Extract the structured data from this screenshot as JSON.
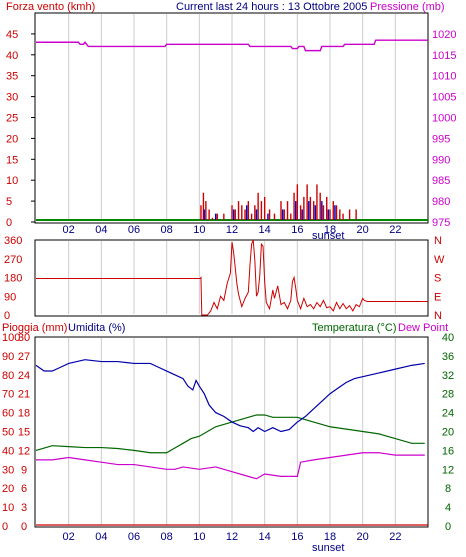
{
  "header": {
    "left_label": "Forza vento (kmh)",
    "center_label": "Current last 24 hours : 13 Ottobre 2005",
    "right_label": "Pressione (mb)"
  },
  "colors": {
    "wind": "#cc0000",
    "pressure": "#cc00cc",
    "direction": "#cc0000",
    "rain": "#cc0000",
    "humidity": "#0000aa",
    "temperature": "#006600",
    "dewpoint": "#cc00cc",
    "gust": "#0000cc",
    "baseline": "#008800",
    "axis_dark": "#000080",
    "grid": "#cccccc"
  },
  "chart_data": [
    {
      "type": "bar",
      "name": "wind-pressure",
      "x_ticks": [
        "02",
        "04",
        "06",
        "08",
        "10",
        "12",
        "14",
        "16",
        "18",
        "20",
        "22"
      ],
      "x_note": "sunset",
      "left_axis": {
        "label": "Forza vento (kmh)",
        "ticks": [
          0,
          5,
          10,
          15,
          20,
          25,
          30,
          35,
          40,
          45
        ],
        "range": [
          0,
          50
        ]
      },
      "right_axis": {
        "label": "Pressione (mb)",
        "ticks": [
          975,
          980,
          985,
          990,
          995,
          1000,
          1005,
          1010,
          1015,
          1020
        ],
        "range": [
          975,
          1025
        ]
      },
      "pressure": [
        [
          0,
          1018
        ],
        [
          2.6,
          1018
        ],
        [
          2.7,
          1017.5
        ],
        [
          2.9,
          1017.5
        ],
        [
          3.0,
          1018
        ],
        [
          3.2,
          1017
        ],
        [
          7.9,
          1017
        ],
        [
          8.0,
          1017.5
        ],
        [
          13.0,
          1017.5
        ],
        [
          13.1,
          1017
        ],
        [
          15.6,
          1017
        ],
        [
          15.7,
          1016.5
        ],
        [
          16.0,
          1016.5
        ],
        [
          16.1,
          1017
        ],
        [
          16.4,
          1017
        ],
        [
          16.5,
          1016
        ],
        [
          17.4,
          1016
        ],
        [
          17.5,
          1017
        ],
        [
          18.8,
          1017
        ],
        [
          18.9,
          1017.5
        ],
        [
          20.7,
          1017.5
        ],
        [
          20.8,
          1018.5
        ],
        [
          24.0,
          1018.5
        ]
      ],
      "wind_speed": [
        [
          10.1,
          4
        ],
        [
          10.25,
          7
        ],
        [
          10.4,
          5
        ],
        [
          10.6,
          3
        ],
        [
          10.8,
          1
        ],
        [
          11.1,
          2
        ],
        [
          11.5,
          2
        ],
        [
          12.0,
          4
        ],
        [
          12.2,
          3
        ],
        [
          12.4,
          5
        ],
        [
          12.6,
          4
        ],
        [
          12.8,
          3
        ],
        [
          13.0,
          5
        ],
        [
          13.2,
          2
        ],
        [
          13.4,
          4
        ],
        [
          13.6,
          7
        ],
        [
          13.8,
          5
        ],
        [
          14.0,
          6
        ],
        [
          14.3,
          3
        ],
        [
          14.6,
          2
        ],
        [
          15.0,
          5
        ],
        [
          15.2,
          3
        ],
        [
          15.4,
          5
        ],
        [
          15.6,
          2
        ],
        [
          15.8,
          7
        ],
        [
          16.0,
          9
        ],
        [
          16.2,
          4
        ],
        [
          16.4,
          6
        ],
        [
          16.6,
          9
        ],
        [
          16.8,
          6
        ],
        [
          17.0,
          5
        ],
        [
          17.2,
          9
        ],
        [
          17.4,
          7
        ],
        [
          17.6,
          4
        ],
        [
          17.8,
          6
        ],
        [
          18.0,
          3
        ],
        [
          18.2,
          5
        ],
        [
          18.4,
          4
        ],
        [
          18.6,
          3
        ],
        [
          18.8,
          2
        ],
        [
          19.2,
          3
        ],
        [
          19.6,
          3
        ]
      ],
      "wind_gust": [
        [
          10.3,
          3
        ],
        [
          11.0,
          2
        ],
        [
          12.1,
          3
        ],
        [
          12.9,
          4
        ],
        [
          13.5,
          3
        ],
        [
          14.2,
          2
        ],
        [
          15.1,
          3
        ],
        [
          15.9,
          5
        ],
        [
          16.3,
          3
        ],
        [
          16.7,
          5
        ],
        [
          17.1,
          4
        ],
        [
          17.5,
          5
        ],
        [
          17.9,
          3
        ],
        [
          18.3,
          4
        ]
      ]
    },
    {
      "type": "line",
      "name": "wind-direction",
      "left_axis": {
        "ticks": [
          0,
          90,
          180,
          270,
          360
        ],
        "range": [
          0,
          360
        ]
      },
      "right_axis": {
        "ticks": [
          "N",
          "W",
          "S",
          "E",
          "N"
        ]
      },
      "direction": [
        [
          0,
          175
        ],
        [
          10.05,
          175
        ],
        [
          10.1,
          180
        ],
        [
          10.15,
          0
        ],
        [
          10.5,
          0
        ],
        [
          10.7,
          20
        ],
        [
          10.9,
          60
        ],
        [
          11.1,
          30
        ],
        [
          11.3,
          90
        ],
        [
          11.5,
          70
        ],
        [
          11.7,
          150
        ],
        [
          11.9,
          200
        ],
        [
          12.0,
          350
        ],
        [
          12.1,
          300
        ],
        [
          12.3,
          150
        ],
        [
          12.4,
          100
        ],
        [
          12.6,
          40
        ],
        [
          12.8,
          80
        ],
        [
          13.0,
          110
        ],
        [
          13.1,
          240
        ],
        [
          13.2,
          340
        ],
        [
          13.3,
          360
        ],
        [
          13.4,
          260
        ],
        [
          13.5,
          90
        ],
        [
          13.6,
          110
        ],
        [
          13.7,
          190
        ],
        [
          13.8,
          340
        ],
        [
          13.9,
          330
        ],
        [
          14.0,
          160
        ],
        [
          14.1,
          60
        ],
        [
          14.3,
          30
        ],
        [
          14.5,
          120
        ],
        [
          14.6,
          80
        ],
        [
          14.8,
          140
        ],
        [
          15.0,
          50
        ],
        [
          15.2,
          60
        ],
        [
          15.4,
          30
        ],
        [
          15.6,
          70
        ],
        [
          15.7,
          160
        ],
        [
          15.8,
          180
        ],
        [
          15.9,
          130
        ],
        [
          16.0,
          70
        ],
        [
          16.2,
          30
        ],
        [
          16.4,
          80
        ],
        [
          16.6,
          40
        ],
        [
          16.8,
          50
        ],
        [
          17.0,
          30
        ],
        [
          17.2,
          60
        ],
        [
          17.4,
          40
        ],
        [
          17.6,
          70
        ],
        [
          17.8,
          35
        ],
        [
          18.0,
          40
        ],
        [
          18.2,
          20
        ],
        [
          18.4,
          60
        ],
        [
          18.6,
          30
        ],
        [
          18.8,
          55
        ],
        [
          19.0,
          30
        ],
        [
          19.2,
          45
        ],
        [
          19.4,
          20
        ],
        [
          19.6,
          50
        ],
        [
          19.8,
          40
        ],
        [
          20.0,
          80
        ],
        [
          20.1,
          70
        ],
        [
          20.3,
          65
        ],
        [
          24,
          65
        ]
      ]
    },
    {
      "type": "line",
      "name": "rain-humidity-temperature",
      "x_ticks": [
        "02",
        "04",
        "06",
        "08",
        "10",
        "12",
        "14",
        "16",
        "18",
        "20",
        "22"
      ],
      "x_note": "sunset",
      "left_labels": {
        "rain_label": "Pioggia (mm)",
        "humidity_label": "Umidita (%)"
      },
      "right_labels": {
        "temp_label": "Temperatura (°C)",
        "dew_label": "Dew Point"
      },
      "rain_ticks": [
        0,
        3,
        6,
        9,
        12,
        15,
        18,
        21,
        24,
        27,
        30
      ],
      "humidity_ticks": [
        0,
        10,
        20,
        30,
        40,
        50,
        60,
        70,
        80,
        90,
        100
      ],
      "temp_ticks": [
        0,
        4,
        8,
        12,
        16,
        20,
        24,
        28,
        32,
        36,
        40
      ],
      "temp_range": [
        0,
        40
      ],
      "humidity": [
        [
          0,
          85
        ],
        [
          0.5,
          82
        ],
        [
          1,
          82
        ],
        [
          1.5,
          84
        ],
        [
          2,
          86
        ],
        [
          3,
          88
        ],
        [
          4,
          87
        ],
        [
          5,
          87
        ],
        [
          6,
          86
        ],
        [
          7,
          86
        ],
        [
          7.5,
          84
        ],
        [
          8,
          82
        ],
        [
          8.5,
          80
        ],
        [
          9,
          78
        ],
        [
          9.3,
          74
        ],
        [
          9.6,
          72
        ],
        [
          9.8,
          77
        ],
        [
          10,
          74
        ],
        [
          10.3,
          70
        ],
        [
          10.6,
          64
        ],
        [
          11,
          60
        ],
        [
          11.5,
          58
        ],
        [
          12,
          55
        ],
        [
          12.5,
          53
        ],
        [
          13,
          52
        ],
        [
          13.3,
          50
        ],
        [
          13.6,
          52
        ],
        [
          14,
          50
        ],
        [
          14.5,
          52
        ],
        [
          15,
          50
        ],
        [
          15.5,
          51
        ],
        [
          16,
          55
        ],
        [
          16.5,
          58
        ],
        [
          17,
          62
        ],
        [
          17.5,
          66
        ],
        [
          18,
          70
        ],
        [
          18.5,
          73
        ],
        [
          19,
          76
        ],
        [
          19.5,
          78
        ],
        [
          20,
          79
        ],
        [
          20.5,
          80
        ],
        [
          21,
          81
        ],
        [
          22,
          83
        ],
        [
          23,
          85
        ],
        [
          23.8,
          86
        ]
      ],
      "temperature": [
        [
          0,
          16
        ],
        [
          1,
          17
        ],
        [
          2,
          16.8
        ],
        [
          3,
          16.6
        ],
        [
          4,
          16.6
        ],
        [
          5,
          16.4
        ],
        [
          6,
          16
        ],
        [
          7,
          15.5
        ],
        [
          8,
          15.5
        ],
        [
          8.5,
          16.5
        ],
        [
          9,
          17.5
        ],
        [
          9.5,
          18.5
        ],
        [
          10,
          19
        ],
        [
          10.5,
          20
        ],
        [
          11,
          21
        ],
        [
          11.5,
          21.5
        ],
        [
          12,
          22
        ],
        [
          12.5,
          22.5
        ],
        [
          13,
          23
        ],
        [
          13.5,
          23.5
        ],
        [
          14,
          23.5
        ],
        [
          14.5,
          23
        ],
        [
          15,
          23
        ],
        [
          15.5,
          23
        ],
        [
          16,
          23
        ],
        [
          16.5,
          22.5
        ],
        [
          17,
          22
        ],
        [
          18,
          21
        ],
        [
          19,
          20.5
        ],
        [
          20,
          20
        ],
        [
          21,
          19.5
        ],
        [
          22,
          18.5
        ],
        [
          23,
          17.5
        ],
        [
          23.8,
          17.5
        ]
      ],
      "dewpoint": [
        [
          0,
          14
        ],
        [
          1,
          14
        ],
        [
          2,
          14.5
        ],
        [
          3,
          14
        ],
        [
          4,
          13.5
        ],
        [
          5,
          13
        ],
        [
          6,
          13
        ],
        [
          7,
          12.5
        ],
        [
          8,
          12
        ],
        [
          8.5,
          12
        ],
        [
          9,
          12.5
        ],
        [
          10,
          12
        ],
        [
          11,
          12.5
        ],
        [
          12,
          11.5
        ],
        [
          13,
          10.5
        ],
        [
          13.5,
          10
        ],
        [
          14,
          11
        ],
        [
          15,
          10.5
        ],
        [
          16,
          10.5
        ],
        [
          16.2,
          13.5
        ],
        [
          17,
          14
        ],
        [
          18,
          14.5
        ],
        [
          19,
          15
        ],
        [
          20,
          15.5
        ],
        [
          21,
          15.5
        ],
        [
          22,
          15
        ],
        [
          23,
          15
        ],
        [
          23.8,
          15
        ]
      ],
      "rain": [
        [
          0,
          0
        ],
        [
          24,
          0
        ]
      ]
    }
  ]
}
